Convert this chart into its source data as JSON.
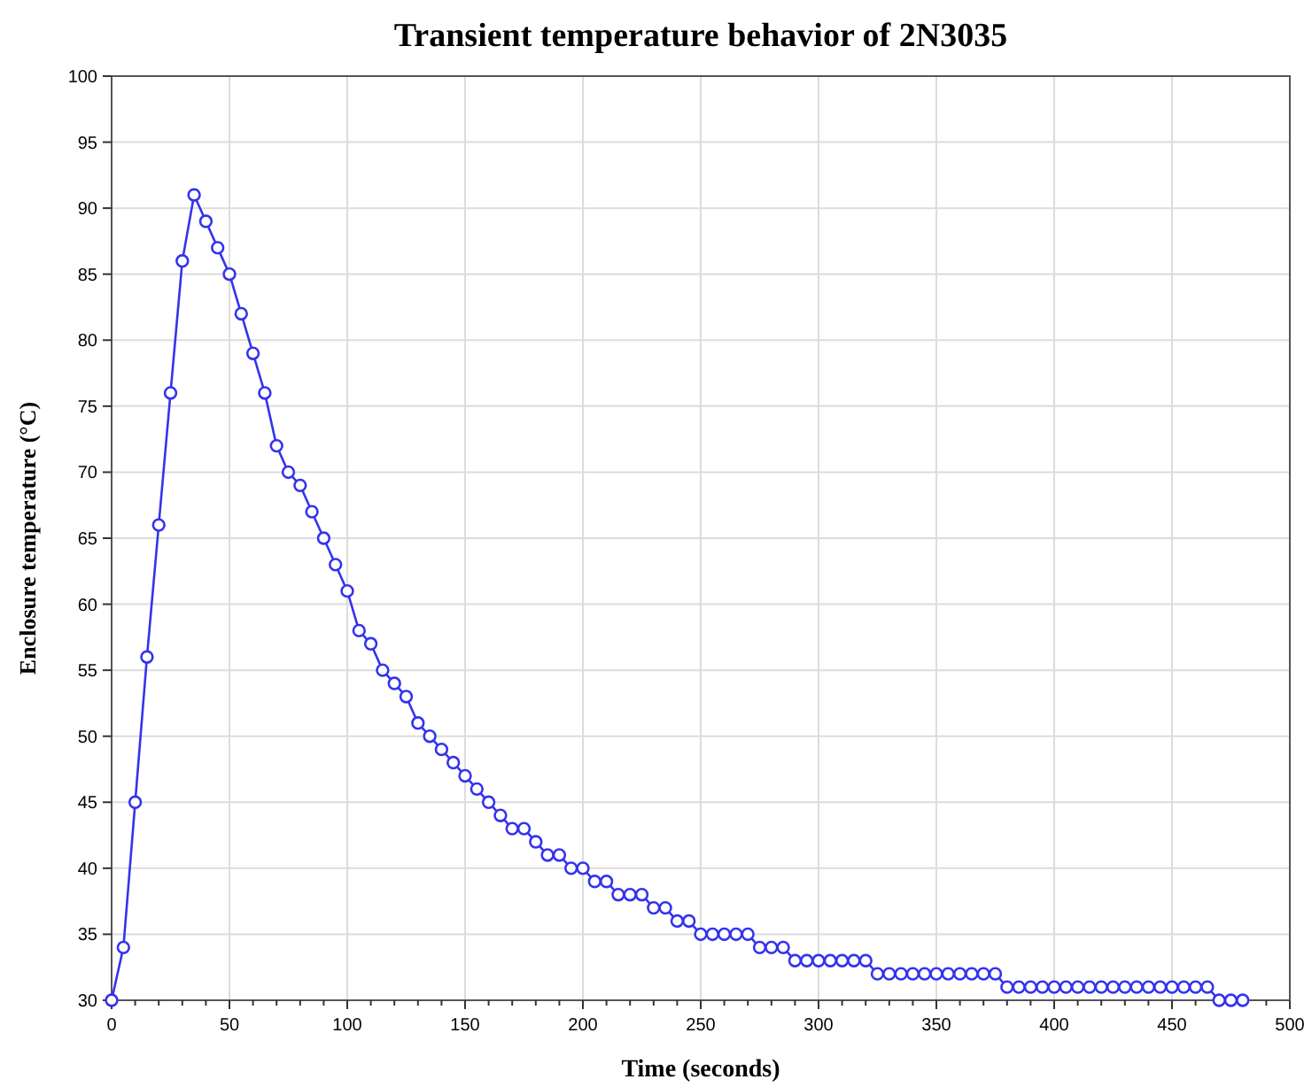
{
  "chart_data": {
    "type": "line",
    "title": "Transient temperature behavior of 2N3035",
    "xlabel": "Time (seconds)",
    "ylabel": "Enclosure temperature (°C)",
    "x": [
      0,
      5,
      10,
      15,
      20,
      25,
      30,
      35,
      40,
      45,
      50,
      55,
      60,
      65,
      70,
      75,
      80,
      85,
      90,
      95,
      100,
      105,
      110,
      115,
      120,
      125,
      130,
      135,
      140,
      145,
      150,
      155,
      160,
      165,
      170,
      175,
      180,
      185,
      190,
      195,
      200,
      205,
      210,
      215,
      220,
      225,
      230,
      235,
      240,
      245,
      250,
      255,
      260,
      265,
      270,
      275,
      280,
      285,
      290,
      295,
      300,
      305,
      310,
      315,
      320,
      325,
      330,
      335,
      340,
      345,
      350,
      355,
      360,
      365,
      370,
      375,
      380,
      385,
      390,
      395,
      400,
      405,
      410,
      415,
      420,
      425,
      430,
      435,
      440,
      445,
      450,
      455,
      460,
      465,
      470,
      475,
      480
    ],
    "series": [
      {
        "color": "#3333ee",
        "values": [
          30,
          34,
          45,
          56,
          66,
          76,
          86,
          91,
          89,
          87,
          85,
          82,
          79,
          76,
          72,
          70,
          69,
          67,
          65,
          63,
          61,
          58,
          57,
          55,
          54,
          53,
          51,
          50,
          49,
          48,
          47,
          46,
          45,
          44,
          43,
          43,
          42,
          41,
          41,
          40,
          40,
          39,
          39,
          38,
          38,
          38,
          37,
          37,
          36,
          36,
          35,
          35,
          35,
          35,
          35,
          34,
          34,
          34,
          33,
          33,
          33,
          33,
          33,
          33,
          33,
          32,
          32,
          32,
          32,
          32,
          32,
          32,
          32,
          32,
          32,
          32,
          31,
          31,
          31,
          31,
          31,
          31,
          31,
          31,
          31,
          31,
          31,
          31,
          31,
          31,
          31,
          31,
          31,
          31,
          30,
          30,
          30
        ]
      }
    ],
    "xlim": [
      0,
      500
    ],
    "xticks": [
      0,
      50,
      100,
      150,
      200,
      250,
      300,
      350,
      400,
      450,
      500
    ],
    "ylim": [
      30,
      100
    ],
    "yticks": [
      30,
      35,
      40,
      45,
      50,
      55,
      60,
      65,
      70,
      75,
      80,
      85,
      90,
      95,
      100
    ],
    "grid": true,
    "marker": "circle",
    "line_style": "solid"
  }
}
